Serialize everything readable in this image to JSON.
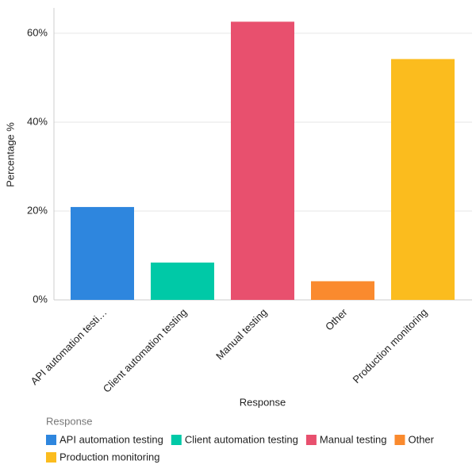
{
  "chart_data": {
    "type": "bar",
    "x_label": "Response",
    "y_label": "Percentage %",
    "categories": [
      "API automation testi…",
      "Client automation testing",
      "Manual testing",
      "Other",
      "Production monitoring"
    ],
    "values": [
      20.9,
      8.4,
      62.6,
      4.2,
      54.2
    ],
    "colors": [
      "#2e86de",
      "#00c9a7",
      "#e8506e",
      "#fa8a2e",
      "#fbbc1e"
    ],
    "ylim": [
      0,
      65.7
    ],
    "yticks": [
      {
        "value": 0,
        "label": "0%"
      },
      {
        "value": 20,
        "label": "20%"
      },
      {
        "value": 40,
        "label": "40%"
      },
      {
        "value": 60,
        "label": "60%"
      }
    ],
    "grid": true,
    "legend": {
      "title": "Response",
      "labels": [
        "API automation testing",
        "Client automation testing",
        "Manual testing",
        "Other",
        "Production monitoring"
      ]
    }
  }
}
